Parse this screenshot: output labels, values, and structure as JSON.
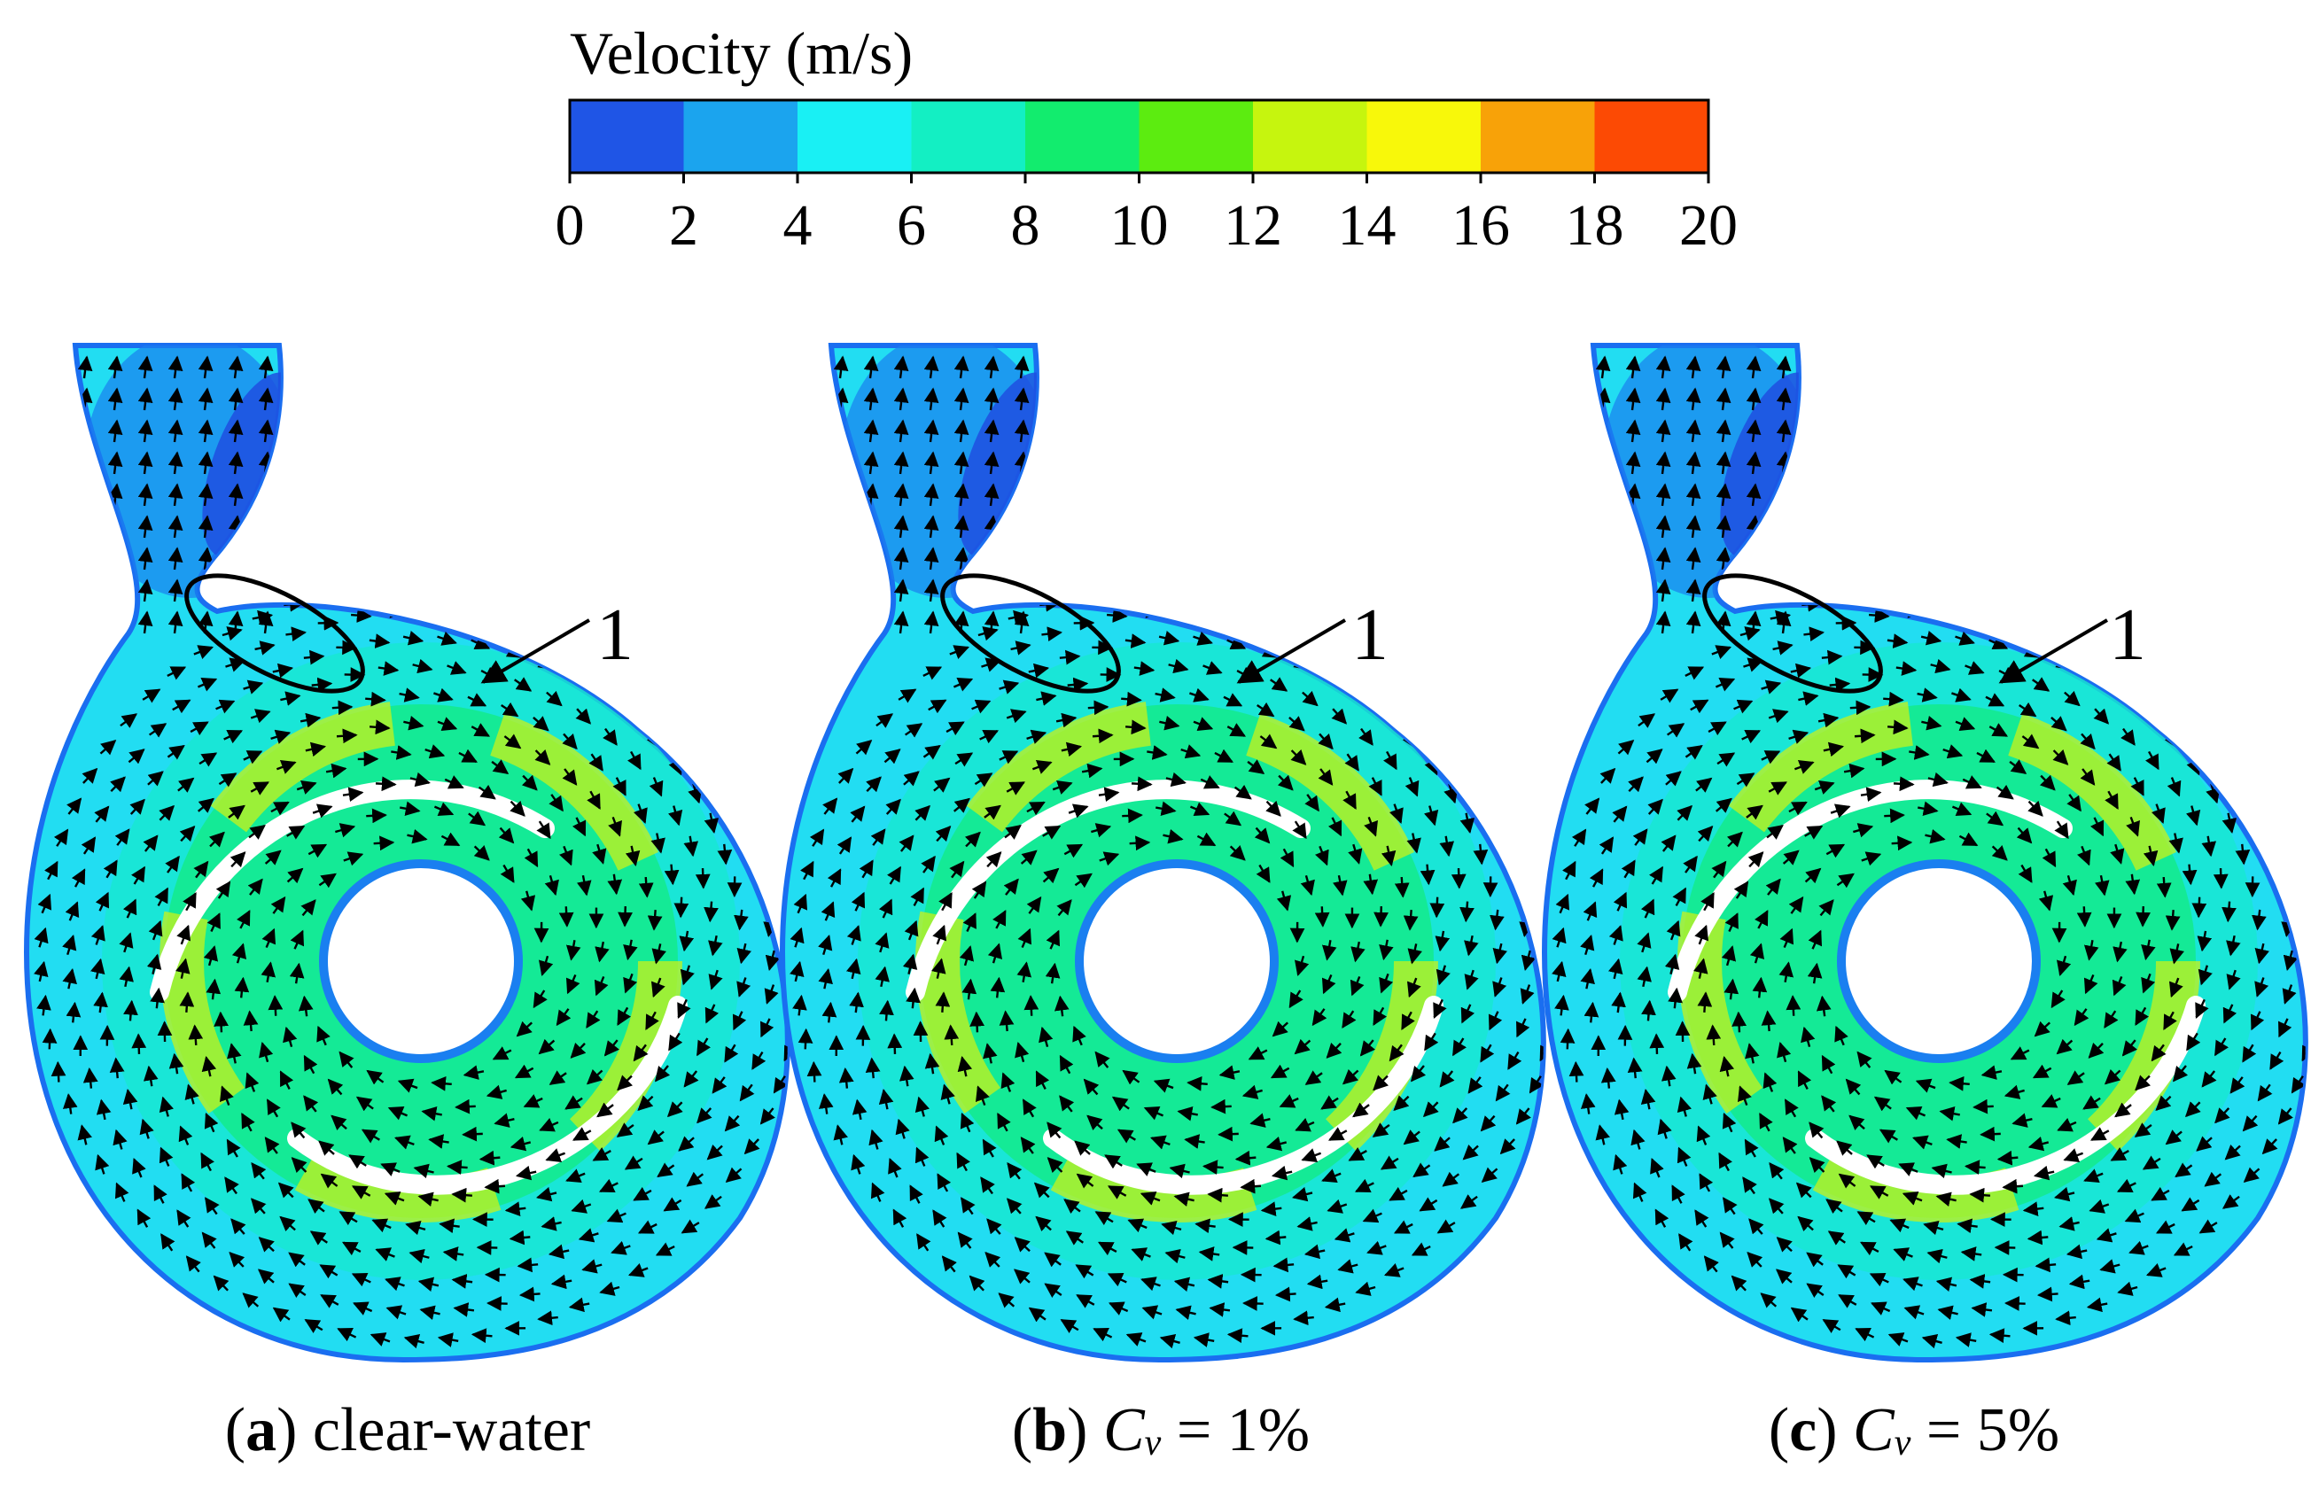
{
  "colorbar": {
    "title": "Velocity (m/s)",
    "ticks": [
      "0",
      "2",
      "4",
      "6",
      "8",
      "10",
      "12",
      "14",
      "16",
      "18",
      "20"
    ],
    "colors": [
      "#1f55e6",
      "#1ba4ee",
      "#19f0f4",
      "#13efc3",
      "#12ec6e",
      "#5cec10",
      "#c6f50e",
      "#f8f80a",
      "#f8a208",
      "#fc4a04"
    ]
  },
  "panels": [
    {
      "id": "a",
      "label_id": "a",
      "label_rest": " clear-water",
      "cv_symbol": "",
      "cv_sub": "",
      "cv_value": "",
      "marker": "1"
    },
    {
      "id": "b",
      "label_id": "b",
      "label_rest": " ",
      "cv_symbol": "C",
      "cv_sub": "v",
      "cv_value": " = 1%",
      "marker": "1"
    },
    {
      "id": "c",
      "label_id": "c",
      "label_rest": " ",
      "cv_symbol": "C",
      "cv_sub": "v",
      "cv_value": " = 5%",
      "marker": "1"
    }
  ],
  "palette": {
    "outer": "#22ddf2",
    "volute_mid": "#18e8cf",
    "impeller": "#14ea96",
    "high": "#c8f218",
    "low": "#1a7ff0",
    "very_low": "#1e4fe0",
    "edge": "#1a6ef0"
  }
}
